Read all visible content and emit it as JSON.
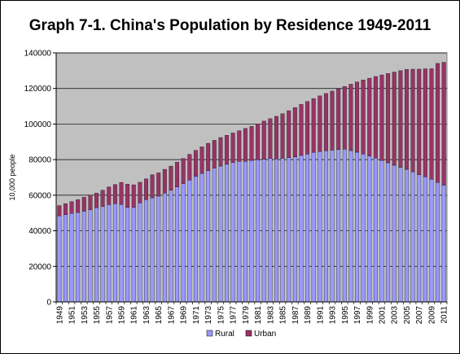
{
  "chart_data": {
    "type": "bar",
    "stacked": true,
    "title": "Graph 7-1. China's Population by Residence 1949-2011",
    "ylabel": "10,000 people",
    "xlabel": "",
    "ylim": [
      0,
      140000
    ],
    "yticks": [
      "0",
      "20000",
      "40000",
      "60000",
      "80000",
      "100000",
      "120000",
      "140000"
    ],
    "x": [
      1949,
      1950,
      1951,
      1952,
      1953,
      1954,
      1955,
      1956,
      1957,
      1958,
      1959,
      1960,
      1961,
      1962,
      1963,
      1964,
      1965,
      1966,
      1967,
      1968,
      1969,
      1970,
      1971,
      1972,
      1973,
      1974,
      1975,
      1976,
      1977,
      1978,
      1979,
      1980,
      1981,
      1982,
      1983,
      1984,
      1985,
      1986,
      1987,
      1988,
      1989,
      1990,
      1991,
      1992,
      1993,
      1994,
      1995,
      1996,
      1997,
      1998,
      1999,
      2000,
      2001,
      2002,
      2003,
      2004,
      2005,
      2006,
      2007,
      2008,
      2009,
      2010,
      2011
    ],
    "xtick_labels": [
      "1949",
      "1951",
      "1953",
      "1955",
      "1957",
      "1959",
      "1961",
      "1963",
      "1965",
      "1967",
      "1969",
      "1971",
      "1973",
      "1975",
      "1977",
      "1979",
      "1981",
      "1983",
      "1985",
      "1987",
      "1989",
      "1991",
      "1993",
      "1995",
      "1997",
      "1999",
      "2001",
      "2003",
      "2005",
      "2007",
      "2009",
      "2011"
    ],
    "series": [
      {
        "name": "Rural",
        "color": "#9999ff",
        "values": [
          48402,
          49105,
          49785,
          50319,
          51022,
          51925,
          52924,
          53643,
          54704,
          55273,
          54836,
          53134,
          53152,
          55636,
          57526,
          58549,
          59493,
          61229,
          62820,
          64704,
          66554,
          68568,
          70518,
          72242,
          73866,
          75264,
          76390,
          77376,
          78305,
          79014,
          79047,
          79565,
          79901,
          80174,
          80734,
          80340,
          80757,
          81141,
          81626,
          82365,
          83164,
          84138,
          84620,
          84996,
          85344,
          85681,
          85947,
          85085,
          84177,
          83153,
          82038,
          80837,
          79563,
          78241,
          76851,
          75705,
          74544,
          73160,
          71496,
          70399,
          68938,
          67113,
          65656
        ]
      },
      {
        "name": "Urban",
        "color": "#993366",
        "values": [
          5765,
          6169,
          6632,
          7163,
          7826,
          8249,
          8285,
          9185,
          9949,
          10721,
          12371,
          13073,
          12707,
          11659,
          11646,
          12950,
          13045,
          13313,
          13548,
          13838,
          14117,
          14424,
          14711,
          14935,
          15345,
          15595,
          16030,
          16341,
          16669,
          17245,
          18495,
          19140,
          20171,
          21480,
          22274,
          24017,
          25094,
          26366,
          27674,
          28661,
          29540,
          30195,
          31203,
          32175,
          33173,
          34169,
          35174,
          37304,
          39449,
          41608,
          43748,
          45906,
          48064,
          50212,
          52376,
          54283,
          56212,
          57706,
          59379,
          60667,
          62186,
          66978,
          69079
        ]
      }
    ],
    "legend_position": "bottom",
    "plot_background": "#c0c0c0",
    "grid": true
  }
}
